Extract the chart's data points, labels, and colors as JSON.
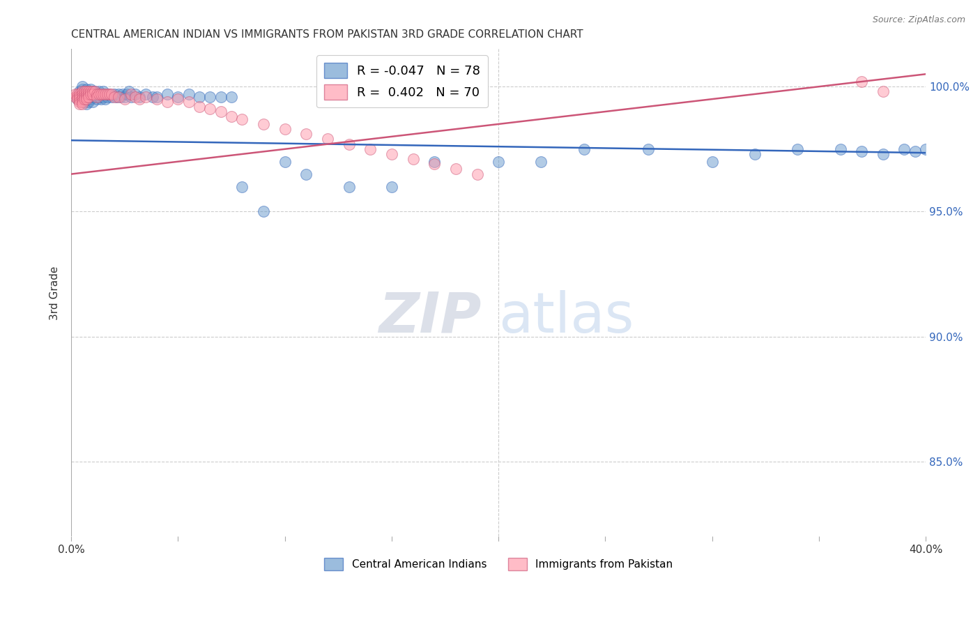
{
  "title": "CENTRAL AMERICAN INDIAN VS IMMIGRANTS FROM PAKISTAN 3RD GRADE CORRELATION CHART",
  "source": "Source: ZipAtlas.com",
  "ylabel": "3rd Grade",
  "ytick_labels": [
    "85.0%",
    "90.0%",
    "95.0%",
    "100.0%"
  ],
  "ytick_values": [
    0.85,
    0.9,
    0.95,
    1.0
  ],
  "xlim": [
    0.0,
    0.4
  ],
  "ylim": [
    0.82,
    1.015
  ],
  "legend_blue_r": "-0.047",
  "legend_blue_n": "78",
  "legend_pink_r": "0.402",
  "legend_pink_n": "70",
  "blue_color": "#6699CC",
  "pink_color": "#FF99AA",
  "blue_line_color": "#3366BB",
  "pink_line_color": "#CC5577",
  "watermark_zip": "ZIP",
  "watermark_atlas": "atlas",
  "blue_scatter_x": [
    0.003,
    0.004,
    0.004,
    0.005,
    0.005,
    0.005,
    0.006,
    0.006,
    0.006,
    0.007,
    0.007,
    0.007,
    0.007,
    0.008,
    0.008,
    0.008,
    0.009,
    0.009,
    0.009,
    0.01,
    0.01,
    0.01,
    0.011,
    0.011,
    0.012,
    0.012,
    0.013,
    0.013,
    0.014,
    0.014,
    0.015,
    0.015,
    0.016,
    0.016,
    0.017,
    0.018,
    0.019,
    0.02,
    0.021,
    0.022,
    0.023,
    0.024,
    0.025,
    0.026,
    0.027,
    0.028,
    0.03,
    0.032,
    0.035,
    0.038,
    0.04,
    0.045,
    0.05,
    0.055,
    0.06,
    0.065,
    0.07,
    0.075,
    0.08,
    0.09,
    0.1,
    0.11,
    0.13,
    0.15,
    0.17,
    0.2,
    0.22,
    0.24,
    0.27,
    0.3,
    0.32,
    0.34,
    0.36,
    0.37,
    0.38,
    0.39,
    0.395,
    0.4
  ],
  "blue_scatter_y": [
    0.995,
    0.996,
    0.998,
    0.997,
    0.999,
    1.0,
    0.998,
    0.996,
    0.994,
    0.997,
    0.999,
    0.995,
    0.993,
    0.998,
    0.996,
    0.994,
    0.997,
    0.999,
    0.995,
    0.998,
    0.996,
    0.994,
    0.998,
    0.996,
    0.997,
    0.995,
    0.998,
    0.996,
    0.997,
    0.995,
    0.998,
    0.996,
    0.997,
    0.995,
    0.996,
    0.997,
    0.996,
    0.997,
    0.996,
    0.997,
    0.996,
    0.997,
    0.996,
    0.997,
    0.998,
    0.996,
    0.997,
    0.996,
    0.997,
    0.996,
    0.996,
    0.997,
    0.996,
    0.997,
    0.996,
    0.996,
    0.996,
    0.996,
    0.96,
    0.95,
    0.97,
    0.965,
    0.96,
    0.96,
    0.97,
    0.97,
    0.97,
    0.975,
    0.975,
    0.97,
    0.973,
    0.975,
    0.975,
    0.974,
    0.973,
    0.975,
    0.974,
    0.975
  ],
  "pink_scatter_x": [
    0.002,
    0.002,
    0.003,
    0.003,
    0.003,
    0.004,
    0.004,
    0.004,
    0.004,
    0.004,
    0.005,
    0.005,
    0.005,
    0.005,
    0.005,
    0.005,
    0.006,
    0.006,
    0.006,
    0.006,
    0.007,
    0.007,
    0.007,
    0.007,
    0.008,
    0.008,
    0.008,
    0.009,
    0.009,
    0.01,
    0.01,
    0.011,
    0.012,
    0.012,
    0.013,
    0.014,
    0.015,
    0.016,
    0.017,
    0.018,
    0.019,
    0.02,
    0.022,
    0.025,
    0.028,
    0.03,
    0.032,
    0.035,
    0.04,
    0.045,
    0.05,
    0.055,
    0.06,
    0.065,
    0.07,
    0.075,
    0.08,
    0.09,
    0.1,
    0.11,
    0.12,
    0.13,
    0.14,
    0.15,
    0.16,
    0.17,
    0.18,
    0.19,
    0.37,
    0.38
  ],
  "pink_scatter_y": [
    0.996,
    0.997,
    0.997,
    0.996,
    0.995,
    0.997,
    0.996,
    0.995,
    0.994,
    0.993,
    0.998,
    0.997,
    0.996,
    0.995,
    0.994,
    0.993,
    0.998,
    0.997,
    0.996,
    0.995,
    0.998,
    0.997,
    0.996,
    0.995,
    0.998,
    0.997,
    0.996,
    0.998,
    0.997,
    0.998,
    0.997,
    0.998,
    0.997,
    0.996,
    0.997,
    0.997,
    0.997,
    0.997,
    0.997,
    0.997,
    0.997,
    0.996,
    0.996,
    0.995,
    0.997,
    0.996,
    0.995,
    0.996,
    0.995,
    0.994,
    0.995,
    0.994,
    0.992,
    0.991,
    0.99,
    0.988,
    0.987,
    0.985,
    0.983,
    0.981,
    0.979,
    0.977,
    0.975,
    0.973,
    0.971,
    0.969,
    0.967,
    0.965,
    1.002,
    0.998
  ],
  "blue_trend_x": [
    0.0,
    0.4
  ],
  "blue_trend_y": [
    0.9785,
    0.9735
  ],
  "pink_trend_x": [
    0.0,
    0.4
  ],
  "pink_trend_y": [
    0.965,
    1.005
  ]
}
